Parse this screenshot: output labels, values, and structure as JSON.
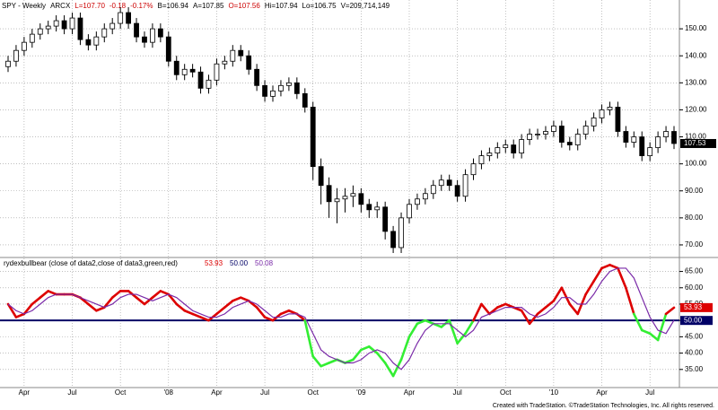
{
  "chart_data": [
    {
      "type": "candlestick",
      "header": [
        "SPY - Weekly",
        "ARCX",
        "L=107.70",
        "-0.18",
        "-0.17%",
        "B=106.94",
        "A=107.85",
        "O=107.56",
        "Hi=107.94",
        "Lo=106.75",
        "V=209,714,149"
      ],
      "header_colors": [
        "#000000",
        "#000000",
        "#cc0000",
        "#cc0000",
        "#cc0000",
        "#000000",
        "#000000",
        "#cc0000",
        "#000000",
        "#000000",
        "#000000"
      ],
      "categories": [
        null,
        null,
        "Apr",
        null,
        null,
        null,
        null,
        null,
        "Jul",
        null,
        null,
        null,
        null,
        null,
        "Oct",
        null,
        null,
        null,
        null,
        null,
        "'08",
        null,
        null,
        null,
        null,
        null,
        "Apr",
        null,
        null,
        null,
        null,
        null,
        "Jul",
        null,
        null,
        null,
        null,
        null,
        "Oct",
        null,
        null,
        null,
        null,
        null,
        "'09",
        null,
        null,
        null,
        null,
        null,
        "Apr",
        null,
        null,
        null,
        null,
        null,
        "Jul",
        null,
        null,
        null,
        null,
        null,
        "Oct",
        null,
        null,
        null,
        null,
        null,
        "'10",
        null,
        null,
        null,
        null,
        null,
        "Apr",
        null,
        null,
        null,
        null,
        null,
        "Jul",
        null,
        null,
        null
      ],
      "open": [
        136,
        138,
        142,
        145,
        148,
        150,
        151,
        153,
        150,
        154,
        146,
        144,
        147,
        150,
        152,
        156,
        152,
        147,
        145,
        150,
        147,
        138,
        133,
        135,
        134,
        128,
        131,
        137,
        138,
        142,
        140,
        135,
        129,
        125,
        127,
        129,
        130,
        126,
        121,
        99,
        92,
        86,
        87,
        88,
        89,
        85,
        83,
        84,
        75,
        69,
        80,
        85,
        87,
        89,
        92,
        94,
        92,
        88,
        96,
        100,
        103,
        104,
        106,
        107,
        104,
        109,
        111,
        111,
        112,
        114,
        108,
        107,
        111,
        114,
        117,
        120,
        121,
        112,
        108,
        110,
        103,
        106,
        110,
        112
      ],
      "high": [
        140,
        144,
        147,
        150,
        152,
        153,
        155,
        155,
        156,
        156,
        148,
        149,
        152,
        154,
        158,
        158,
        154,
        149,
        152,
        152,
        149,
        140,
        137,
        137,
        136,
        133,
        139,
        140,
        144,
        144,
        142,
        137,
        131,
        129,
        131,
        132,
        132,
        128,
        123,
        102,
        95,
        91,
        91,
        92,
        91,
        87,
        86,
        86,
        77,
        82,
        87,
        89,
        91,
        94,
        96,
        96,
        94,
        98,
        102,
        105,
        106,
        108,
        109,
        109,
        111,
        113,
        113,
        114,
        116,
        116,
        110,
        113,
        116,
        119,
        122,
        123,
        123,
        114,
        112,
        112,
        108,
        112,
        114,
        114
      ],
      "low": [
        134,
        136,
        140,
        143,
        146,
        148,
        149,
        148,
        148,
        144,
        142,
        142,
        145,
        148,
        150,
        150,
        145,
        143,
        143,
        145,
        136,
        131,
        131,
        132,
        126,
        126,
        129,
        135,
        136,
        138,
        133,
        127,
        123,
        123,
        125,
        127,
        124,
        119,
        94,
        85,
        80,
        78,
        82,
        84,
        82,
        80,
        80,
        72,
        67,
        67,
        78,
        83,
        85,
        87,
        90,
        90,
        86,
        86,
        94,
        98,
        101,
        102,
        104,
        102,
        102,
        107,
        109,
        109,
        110,
        106,
        105,
        105,
        109,
        112,
        115,
        118,
        110,
        106,
        106,
        101,
        101,
        104,
        108,
        105.5
      ],
      "close": [
        138,
        142,
        145,
        148,
        150,
        151,
        153,
        150,
        154,
        146,
        144,
        147,
        150,
        152,
        156,
        152,
        147,
        145,
        150,
        147,
        138,
        133,
        135,
        134,
        128,
        131,
        137,
        138,
        142,
        140,
        135,
        129,
        125,
        127,
        129,
        130,
        126,
        121,
        99,
        92,
        86,
        87,
        88,
        89,
        85,
        83,
        84,
        75,
        69,
        80,
        85,
        87,
        89,
        92,
        94,
        92,
        88,
        96,
        100,
        103,
        104,
        106,
        107,
        104,
        109,
        111,
        111,
        112,
        114,
        108,
        107,
        111,
        114,
        117,
        120,
        121,
        112,
        108,
        110,
        103,
        106,
        110,
        112,
        107.53
      ],
      "up_color": "#ffffff",
      "down_color": "#000000",
      "ylim": [
        66,
        160
      ],
      "yticks": [
        {
          "value": 70,
          "label": "70.00"
        },
        {
          "value": 80,
          "label": "80.00"
        },
        {
          "value": 90,
          "label": "90.00"
        },
        {
          "value": 100,
          "label": "100.00"
        },
        {
          "value": 110,
          "label": "110.00"
        },
        {
          "value": 120,
          "label": "120.00"
        },
        {
          "value": 130,
          "label": "130.00"
        },
        {
          "value": 140,
          "label": "140.00"
        },
        {
          "value": 150,
          "label": "150.00"
        }
      ],
      "grid": true
    },
    {
      "type": "line",
      "title": "rydexbullbear (close of data2,close of data3,green,red)",
      "series": [
        {
          "color_above": "#dd0000",
          "color_below": "#33ee33",
          "values": [
            55,
            51,
            52,
            55,
            57,
            59,
            58,
            58,
            58,
            57,
            55,
            53,
            54,
            57,
            59,
            59,
            57,
            55,
            57,
            59,
            58,
            55,
            53,
            52,
            51,
            50,
            52,
            54,
            56,
            57,
            56,
            54,
            51,
            50,
            52,
            53,
            52,
            50,
            39,
            36,
            37,
            38,
            37,
            38,
            41,
            42,
            40,
            37,
            33,
            38,
            45,
            49,
            50,
            49,
            48,
            50,
            43,
            46,
            50,
            55,
            52,
            54,
            55,
            54,
            53,
            49,
            52,
            54,
            56,
            60,
            55,
            52,
            58,
            62,
            66,
            67,
            66,
            60,
            52,
            47,
            46,
            44,
            52,
            53.93
          ]
        },
        {
          "color": "#7a2aa8",
          "values": [
            55,
            53,
            52,
            53,
            55,
            57,
            58,
            58,
            58,
            57,
            56,
            55,
            54,
            55,
            57,
            58,
            58,
            57,
            56,
            57,
            58,
            57,
            55,
            53,
            52,
            51,
            51,
            52,
            54,
            55,
            56,
            55,
            53,
            51,
            51,
            52,
            52,
            51,
            46,
            41,
            39,
            38,
            37,
            37,
            38,
            40,
            41,
            40,
            37,
            35,
            38,
            43,
            47,
            49,
            49,
            49,
            47,
            45,
            47,
            51,
            52,
            53,
            54,
            54,
            54,
            52,
            51,
            52,
            54,
            57,
            57,
            55,
            55,
            58,
            62,
            65,
            66,
            66,
            63,
            57,
            51,
            47,
            46,
            50.08
          ]
        }
      ],
      "level": {
        "value": 50,
        "label": "50.00"
      },
      "level_color": "#000066",
      "ylim": [
        30,
        69
      ],
      "yticks": [
        {
          "value": 35,
          "label": "35.00"
        },
        {
          "value": 40,
          "label": "40.00"
        },
        {
          "value": 45,
          "label": "45.00"
        },
        {
          "value": 50,
          "label": "50.00"
        },
        {
          "value": 55,
          "label": "55.00"
        },
        {
          "value": 60,
          "label": "60.00"
        },
        {
          "value": 65,
          "label": "65.00"
        }
      ],
      "grid": true
    }
  ],
  "footer": "Created with TradeStation. ©TradeStation Technologies, Inc. All rights reserved."
}
